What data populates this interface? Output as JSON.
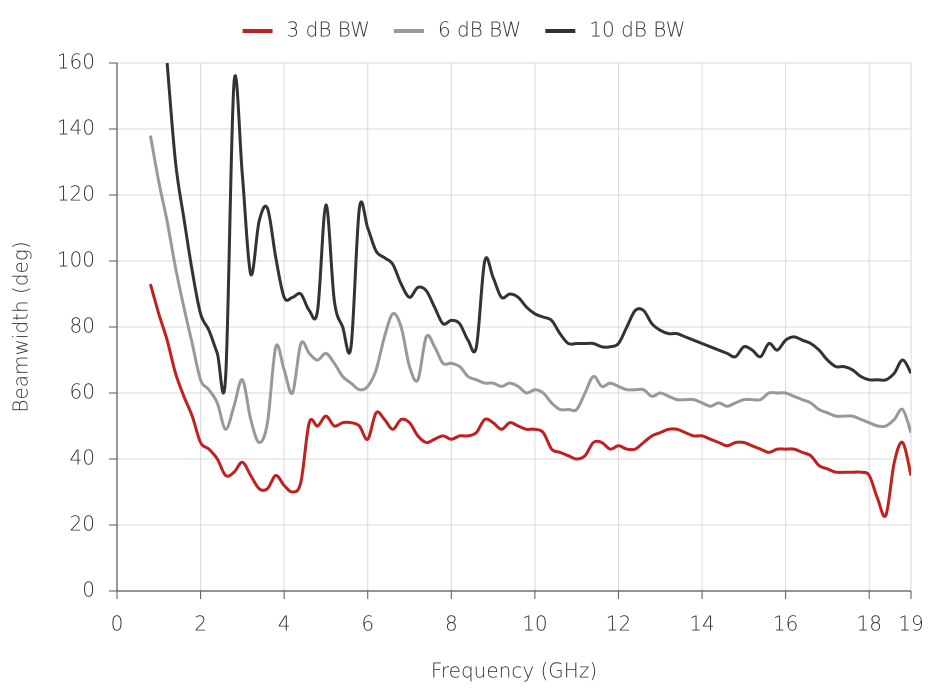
{
  "chart_data": {
    "type": "line",
    "x_label": "Frequency (GHz)",
    "y_label": "Beamwidth (deg)",
    "x": [
      0.8,
      1.0,
      1.2,
      1.4,
      1.6,
      1.8,
      2.0,
      2.2,
      2.4,
      2.6,
      2.8,
      3.0,
      3.2,
      3.4,
      3.6,
      3.8,
      4.0,
      4.2,
      4.4,
      4.6,
      4.8,
      5.0,
      5.2,
      5.4,
      5.6,
      5.8,
      6.0,
      6.2,
      6.4,
      6.6,
      6.8,
      7.0,
      7.2,
      7.4,
      7.6,
      7.8,
      8.0,
      8.2,
      8.4,
      8.6,
      8.8,
      9.0,
      9.2,
      9.4,
      9.6,
      9.8,
      10.0,
      10.2,
      10.4,
      10.6,
      10.8,
      11.0,
      11.2,
      11.4,
      11.6,
      11.8,
      12.0,
      12.2,
      12.4,
      12.6,
      12.8,
      13.0,
      13.2,
      13.4,
      13.6,
      13.8,
      14.0,
      14.2,
      14.4,
      14.6,
      14.8,
      15.0,
      15.2,
      15.4,
      15.6,
      15.8,
      16.0,
      16.2,
      16.4,
      16.6,
      16.8,
      17.0,
      17.2,
      17.4,
      17.6,
      17.8,
      18.0,
      18.2,
      18.4,
      18.6,
      18.8,
      19.0
    ],
    "series": [
      {
        "name": "3 dB BW",
        "color": "#c0201e",
        "values": [
          93,
          84,
          76,
          66,
          59,
          53,
          45,
          43,
          40,
          35,
          36,
          39,
          35,
          31,
          31,
          35,
          32,
          30,
          33,
          51,
          50,
          53,
          50,
          51,
          51,
          50,
          46,
          54,
          52,
          49,
          52,
          51,
          47,
          45,
          46,
          47,
          46,
          47,
          47,
          48,
          52,
          51,
          49,
          51,
          50,
          49,
          49,
          48,
          43,
          42,
          41,
          40,
          41,
          45,
          45,
          43,
          44,
          43,
          43,
          45,
          47,
          48,
          49,
          49,
          48,
          47,
          47,
          46,
          45,
          44,
          45,
          45,
          44,
          43,
          42,
          43,
          43,
          43,
          42,
          41,
          38,
          37,
          36,
          36,
          36,
          36,
          35,
          28,
          23,
          39,
          45,
          35
        ]
      },
      {
        "name": "6 dB BW",
        "color": "#999999",
        "values": [
          138,
          124,
          112,
          98,
          86,
          75,
          64,
          61,
          57,
          49,
          56,
          64,
          52,
          45,
          51,
          74,
          67,
          60,
          75,
          72,
          70,
          72,
          69,
          65,
          63,
          61,
          62,
          67,
          77,
          84,
          80,
          68,
          64,
          77,
          74,
          69,
          69,
          68,
          65,
          64,
          63,
          63,
          62,
          63,
          62,
          60,
          61,
          60,
          57,
          55,
          55,
          55,
          60,
          65,
          62,
          63,
          62,
          61,
          61,
          61,
          59,
          60,
          59,
          58,
          58,
          58,
          57,
          56,
          57,
          56,
          57,
          58,
          58,
          58,
          60,
          60,
          60,
          59,
          58,
          57,
          55,
          54,
          53,
          53,
          53,
          52,
          51,
          50,
          50,
          52,
          55,
          48
        ]
      },
      {
        "name": "10 dB BW",
        "color": "#333333",
        "values": [
          null,
          null,
          160,
          130,
          113,
          97,
          84,
          79,
          72,
          65,
          154,
          126,
          96,
          112,
          116,
          101,
          89,
          89,
          90,
          85,
          85,
          117,
          88,
          80,
          74,
          116,
          110,
          103,
          101,
          99,
          93,
          89,
          92,
          91,
          86,
          81,
          82,
          81,
          76,
          74,
          100,
          95,
          89,
          90,
          89,
          86,
          84,
          83,
          82,
          78,
          75,
          75,
          75,
          75,
          74,
          74,
          75,
          80,
          85,
          85,
          81,
          79,
          78,
          78,
          77,
          76,
          75,
          74,
          73,
          72,
          71,
          74,
          73,
          71,
          75,
          73,
          76,
          77,
          76,
          75,
          73,
          70,
          68,
          68,
          67,
          65,
          64,
          64,
          64,
          66,
          70,
          66
        ]
      }
    ],
    "xlim": [
      0,
      19
    ],
    "xticks": [
      0,
      2,
      4,
      6,
      8,
      10,
      12,
      14,
      16,
      18,
      19
    ],
    "ylim": [
      0,
      160
    ],
    "yticks": [
      0,
      20,
      40,
      60,
      80,
      100,
      120,
      140,
      160
    ],
    "grid": true,
    "legend": "top"
  }
}
